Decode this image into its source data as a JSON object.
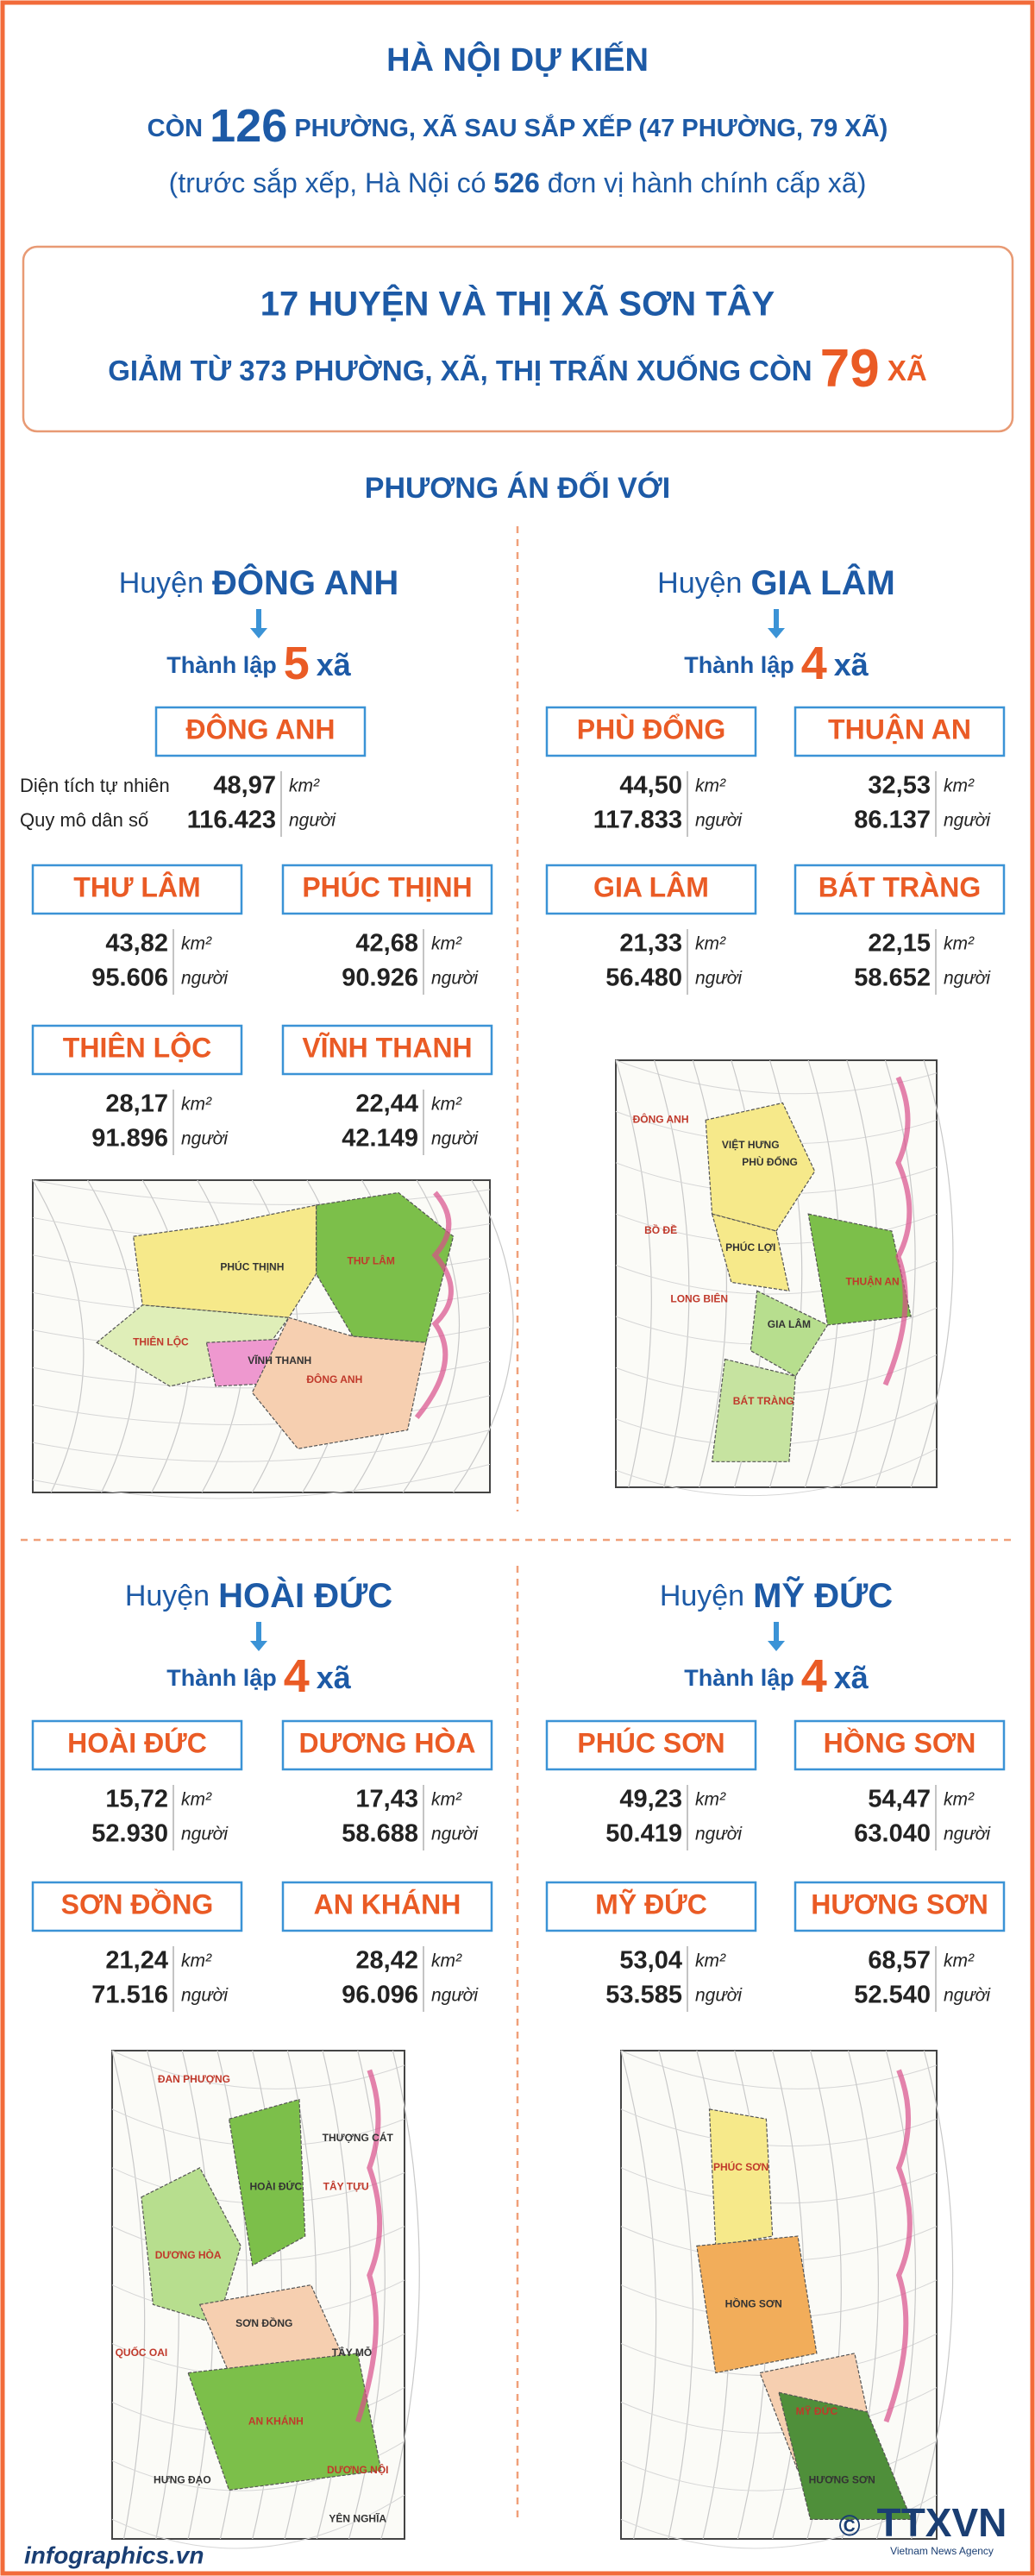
{
  "header": {
    "title": "HÀ NỘI DỰ KIẾN",
    "line2": [
      "CÒN ",
      "126",
      " PHƯỜNG, XÃ SAU SẮP XẾP (47 PHƯỜNG, 79 XÃ)"
    ],
    "line3": [
      "(trước sắp xếp, Hà Nội có ",
      "526",
      " đơn vị hành chính cấp xã)"
    ]
  },
  "banner": {
    "line1": "17 HUYỆN VÀ THỊ XÃ SƠN TÂY",
    "line2": [
      "GIẢM TỪ 373 PHƯỜNG, XÃ, THỊ TRẤN XUỐNG CÒN ",
      "79",
      " XÃ"
    ]
  },
  "section_title": "PHƯƠNG ÁN ĐỐI VỚI",
  "stat_labels": {
    "area": "Diện tích tự nhiên",
    "population": "Quy mô dân số"
  },
  "units": {
    "area": "km²",
    "population": "người"
  },
  "districts": [
    {
      "prefix": "Huyện",
      "name": "ĐÔNG ANH",
      "establish_label": "Thành lập",
      "count": "5",
      "count_unit": "xã",
      "communes": [
        {
          "name": "ĐÔNG ANH",
          "area": "48,97",
          "population": "116.423"
        },
        {
          "name": "THƯ LÂM",
          "area": "43,82",
          "population": "95.606"
        },
        {
          "name": "PHÚC THỊNH",
          "area": "42,68",
          "population": "90.926"
        },
        {
          "name": "THIÊN LỘC",
          "area": "28,17",
          "population": "91.896"
        },
        {
          "name": "VĨNH THANH",
          "area": "22,44",
          "population": "42.149"
        }
      ],
      "map_labels": [
        "THƯ LÂM",
        "PHÚC THỊNH",
        "THIÊN LỘC",
        "VĨNH THANH",
        "ĐÔNG ANH"
      ]
    },
    {
      "prefix": "Huyện",
      "name": "GIA LÂM",
      "establish_label": "Thành lập",
      "count": "4",
      "count_unit": "xã",
      "communes": [
        {
          "name": "PHÙ ĐỔNG",
          "area": "44,50",
          "population": "117.833"
        },
        {
          "name": "THUẬN AN",
          "area": "32,53",
          "population": "86.137"
        },
        {
          "name": "GIA LÂM",
          "area": "21,33",
          "population": "56.480"
        },
        {
          "name": "BÁT TRÀNG",
          "area": "22,15",
          "population": "58.652"
        }
      ],
      "map_labels": [
        "ĐÔNG ANH",
        "VIỆT HƯNG",
        "BỒ ĐỀ",
        "PHÚC LỢI",
        "LONG BIÊN",
        "PHÙ ĐỔNG",
        "THUẬN AN",
        "GIA LÂM",
        "BÁT TRÀNG"
      ]
    },
    {
      "prefix": "Huyện",
      "name": "HOÀI ĐỨC",
      "establish_label": "Thành lập",
      "count": "4",
      "count_unit": "xã",
      "communes": [
        {
          "name": "HOÀI ĐỨC",
          "area": "15,72",
          "population": "52.930"
        },
        {
          "name": "DƯƠNG HÒA",
          "area": "17,43",
          "population": "58.688"
        },
        {
          "name": "SƠN ĐỒNG",
          "area": "21,24",
          "population": "71.516"
        },
        {
          "name": "AN KHÁNH",
          "area": "28,42",
          "population": "96.096"
        }
      ],
      "map_labels": [
        "ĐAN PHƯỢNG",
        "THƯỢNG CÁT",
        "TÂY TỰU",
        "HOÀI ĐỨC",
        "DƯƠNG HÒA",
        "SƠN ĐỒNG",
        "QUỐC OAI",
        "TÂY MỖ",
        "AN KHÁNH",
        "HƯNG ĐẠO",
        "DƯƠNG NỘI",
        "YÊN NGHĨA"
      ]
    },
    {
      "prefix": "Huyện",
      "name": "MỸ ĐỨC",
      "establish_label": "Thành lập",
      "count": "4",
      "count_unit": "xã",
      "communes": [
        {
          "name": "PHÚC SƠN",
          "area": "49,23",
          "population": "50.419"
        },
        {
          "name": "HỒNG SƠN",
          "area": "54,47",
          "population": "63.040"
        },
        {
          "name": "MỸ ĐỨC",
          "area": "53,04",
          "population": "53.585"
        },
        {
          "name": "HƯƠNG SƠN",
          "area": "68,57",
          "population": "52.540"
        }
      ],
      "map_labels": [
        "PHÚC SƠN",
        "HỒNG SƠN",
        "MỸ ĐỨC",
        "HƯƠNG SƠN"
      ]
    }
  ],
  "footer": {
    "site": "infographics.vn",
    "copyright": "©",
    "logo": "TTXVN",
    "agency": "Vietnam News Agency"
  }
}
